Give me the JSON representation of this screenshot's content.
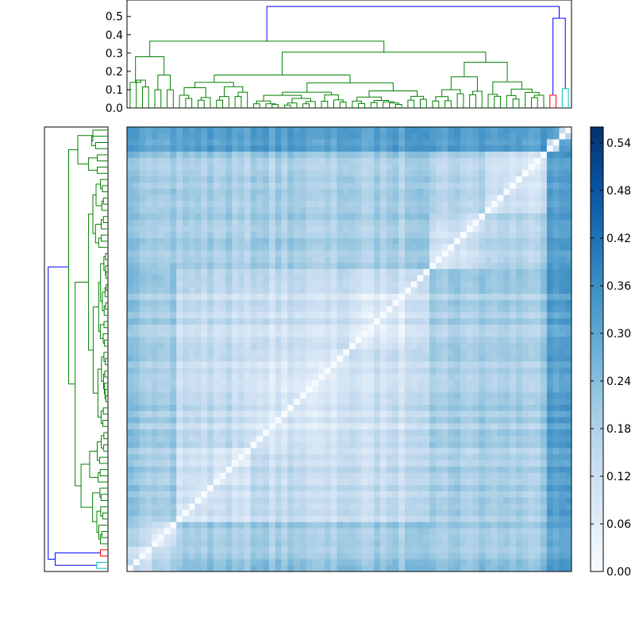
{
  "chart_data": [
    {
      "type": "dendrogram",
      "orientation": "top",
      "ylim": [
        0.0,
        0.59
      ],
      "yticks": [
        "0.0",
        "0.1",
        "0.2",
        "0.3",
        "0.4",
        "0.5"
      ],
      "root_height": 0.555,
      "leaf_count": 72,
      "cluster_colors": [
        "#008000",
        "#ff0000",
        "#00bfbf",
        "#0000ff"
      ]
    },
    {
      "type": "dendrogram",
      "orientation": "left",
      "root_height": 0.555,
      "leaf_count": 72,
      "cluster_colors": [
        "#008000",
        "#ff0000",
        "#00bfbf",
        "#0000ff"
      ]
    },
    {
      "type": "heatmap",
      "description_matrix": "symmetric pairwise distance matrix, 72 x 72, zero diagonal",
      "n": 72,
      "vmin": 0.0,
      "vmax": 0.56,
      "colormap": "Blues",
      "colorbar_ticks": [
        "0.00",
        "0.06",
        "0.12",
        "0.18",
        "0.24",
        "0.30",
        "0.36",
        "0.42",
        "0.48",
        "0.54"
      ],
      "block_labels": [
        "green-main",
        "red",
        "cyan"
      ]
    }
  ]
}
